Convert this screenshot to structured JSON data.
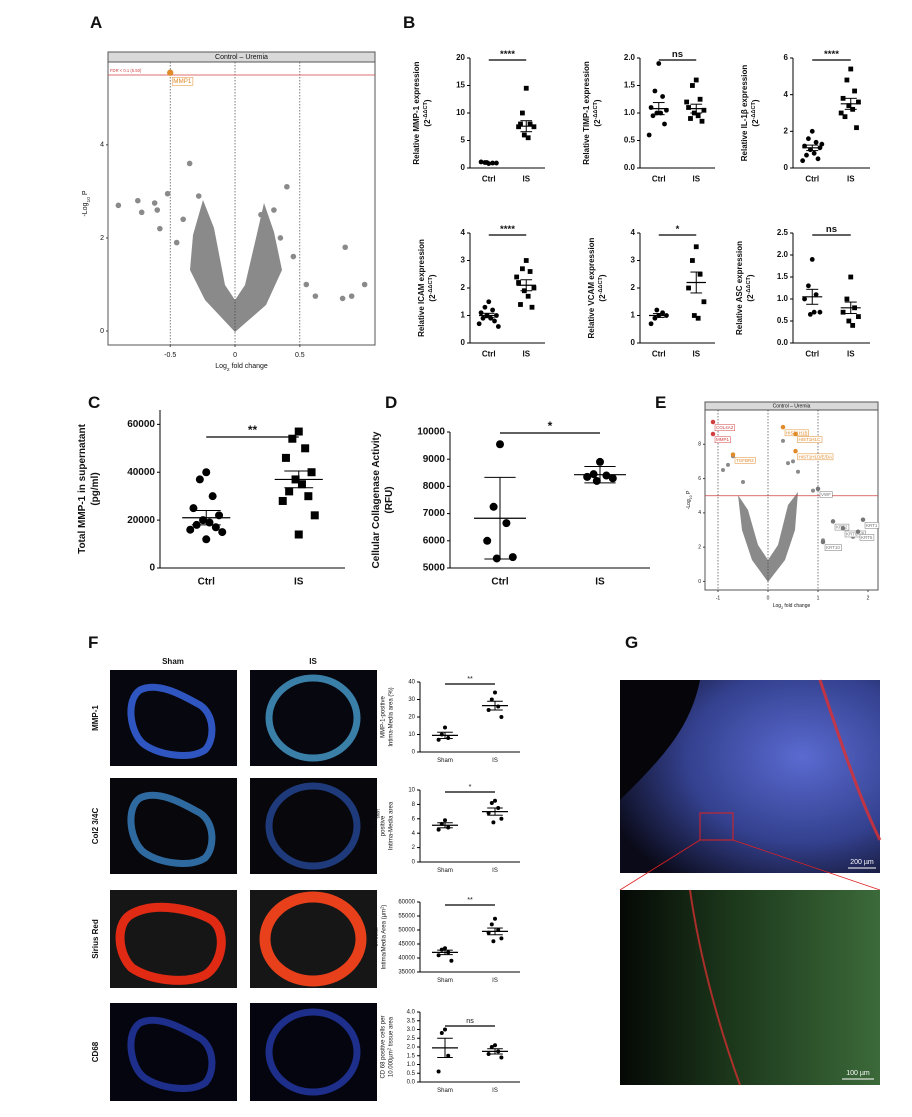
{
  "panel_labels": [
    "A",
    "B",
    "C",
    "D",
    "E",
    "F",
    "G"
  ],
  "figure_F": {
    "columns": [
      "Sham",
      "IS"
    ],
    "rows": [
      "MMP-1",
      "Col2 3/4C",
      "Sirius Red",
      "CD68"
    ]
  },
  "figure_G": {
    "scale_top": "200 µm",
    "scale_bottom": "100 µm"
  },
  "chart_data": [
    {
      "type": "volcano",
      "title": "Control – Uremia",
      "xlabel": [
        "Log",
        "2",
        " fold change"
      ],
      "ylabel": [
        "-Log",
        "10",
        " P"
      ],
      "xlim": [
        -0.98,
        1.08
      ],
      "ylim": [
        -0.3,
        5.78
      ],
      "xticks": [
        -0.5,
        0,
        0.5
      ],
      "yticks": [
        0,
        2,
        4
      ],
      "vlines": [
        -0.5,
        0,
        0.5
      ],
      "threshold": 5.5,
      "threshold_label": "FDR < 0.1 (5.50)",
      "point_color": "#8a8a8a",
      "threshold_color": "#d04040",
      "x": [
        -0.9,
        -0.75,
        -0.72,
        -0.6,
        -0.62,
        -0.52,
        -0.58,
        -0.35,
        -0.4,
        -0.45,
        0.85,
        0.9,
        1.0,
        0.83,
        0.62,
        0.55,
        0.4,
        0.3,
        0.45,
        -0.28,
        0.2,
        0.35
      ],
      "y": [
        2.7,
        2.8,
        2.55,
        2.6,
        2.75,
        2.95,
        2.2,
        3.6,
        2.4,
        1.9,
        1.8,
        0.75,
        1.0,
        0.7,
        0.75,
        1.0,
        3.1,
        2.6,
        1.6,
        2.9,
        2.5,
        2.0
      ],
      "labels": [
        {
          "text": "MMP1",
          "x": -0.5,
          "y": 5.55,
          "color": "#e08a2a"
        }
      ]
    },
    {
      "type": "dotplot",
      "ylabel": [
        [
          "Relative MMP-1 expression"
        ],
        [
          "(2",
          "-ΔΔCT",
          ")"
        ]
      ],
      "ylabel_shift": "super",
      "categories": [
        "Ctrl",
        "IS"
      ],
      "markers": [
        "circle",
        "square"
      ],
      "color": "#000000",
      "ylim": [
        0,
        20
      ],
      "yticks": [
        0,
        5,
        10,
        15,
        20
      ],
      "groups": [
        {
          "values": [
            0.8,
            1.0,
            0.9,
            1.1,
            0.9,
            1.0
          ],
          "mean": 0.95,
          "error": 0.05
        },
        {
          "values": [
            14.5,
            10,
            8,
            7.5,
            7.5,
            6,
            5.5,
            8
          ],
          "mean": 7.6,
          "error": 1.0
        }
      ],
      "significance": "****"
    },
    {
      "type": "dotplot",
      "ylabel": [
        [
          "Relative TIMP-1 expression"
        ],
        [
          "(2",
          "-ΔΔCT",
          ")"
        ]
      ],
      "ylabel_shift": "super",
      "categories": [
        "Ctrl",
        "IS"
      ],
      "markers": [
        "circle",
        "square"
      ],
      "color": "#000000",
      "ylim": [
        0,
        2
      ],
      "yticks": [
        {
          "value": 0,
          "label": "0.0"
        },
        0.5,
        {
          "value": 1,
          "label": "1.0"
        },
        1.5,
        {
          "value": 2,
          "label": "2.0"
        }
      ],
      "groups": [
        {
          "values": [
            1.9,
            1.4,
            1.3,
            1.1,
            1.05,
            1.0,
            1.0,
            0.95,
            0.8,
            0.6
          ],
          "mean": 1.08,
          "error": 0.11
        },
        {
          "values": [
            1.6,
            1.5,
            1.25,
            1.1,
            1.05,
            1.0,
            0.95,
            0.9,
            0.85,
            1.2
          ],
          "mean": 1.08,
          "error": 0.08
        }
      ],
      "significance": "ns"
    },
    {
      "type": "dotplot",
      "ylabel": [
        [
          "Relative IL-1β expression"
        ],
        [
          "(2",
          "-ΔΔCT",
          ")"
        ]
      ],
      "ylabel_shift": "super",
      "categories": [
        "Ctrl",
        "IS"
      ],
      "markers": [
        "circle",
        "square"
      ],
      "color": "#000000",
      "ylim": [
        0,
        6
      ],
      "yticks": [
        0,
        2,
        4,
        6
      ],
      "groups": [
        {
          "values": [
            2.0,
            1.6,
            1.4,
            1.2,
            1.1,
            1.0,
            0.8,
            0.7,
            0.5,
            0.4,
            1.3
          ],
          "mean": 1.1,
          "error": 0.15
        },
        {
          "values": [
            5.4,
            4.8,
            4.2,
            3.8,
            3.6,
            3.4,
            3.2,
            2.8,
            2.2,
            3.0
          ],
          "mean": 3.5,
          "error": 0.3
        }
      ],
      "significance": "****"
    },
    {
      "type": "dotplot",
      "ylabel": [
        [
          "Relative ICAM expression"
        ],
        [
          "(2",
          "-ΔΔCT",
          ")"
        ]
      ],
      "ylabel_shift": "super",
      "categories": [
        "Ctrl",
        "IS"
      ],
      "markers": [
        "circle",
        "square"
      ],
      "color": "#000000",
      "ylim": [
        0,
        4
      ],
      "yticks": [
        0,
        1,
        2,
        3,
        4
      ],
      "groups": [
        {
          "values": [
            1.5,
            1.3,
            1.2,
            1.1,
            1.0,
            1.0,
            0.9,
            0.9,
            0.8,
            0.7,
            0.6
          ],
          "mean": 1.0,
          "error": 0.08
        },
        {
          "values": [
            3.0,
            2.7,
            2.6,
            2.2,
            2.0,
            1.9,
            1.7,
            1.4,
            1.3,
            2.4
          ],
          "mean": 2.1,
          "error": 0.2
        }
      ],
      "significance": "****"
    },
    {
      "type": "dotplot",
      "ylabel": [
        [
          "Relative VCAM expression"
        ],
        [
          "(2",
          "-ΔΔCT",
          ")"
        ]
      ],
      "ylabel_shift": "super",
      "categories": [
        "Ctrl",
        "IS"
      ],
      "markers": [
        "circle",
        "square"
      ],
      "color": "#000000",
      "ylim": [
        0,
        4
      ],
      "yticks": [
        0,
        1,
        2,
        3,
        4
      ],
      "groups": [
        {
          "values": [
            1.0,
            0.9,
            1.1,
            0.7,
            1.0,
            1.2
          ],
          "mean": 1.0,
          "error": 0.07
        },
        {
          "values": [
            3.5,
            3.0,
            2.5,
            2.0,
            1.5,
            1.0,
            0.9
          ],
          "mean": 2.2,
          "error": 0.38
        }
      ],
      "significance": "*"
    },
    {
      "type": "dotplot",
      "ylabel": [
        [
          "Relative ASC expression"
        ],
        [
          "(2",
          "-ΔΔCT",
          ")"
        ]
      ],
      "ylabel_shift": "super",
      "categories": [
        "Ctrl",
        "IS"
      ],
      "markers": [
        "circle",
        "square"
      ],
      "color": "#000000",
      "ylim": [
        0,
        2.5
      ],
      "yticks": [
        {
          "value": 0,
          "label": "0.0"
        },
        0.5,
        {
          "value": 1,
          "label": "1.0"
        },
        1.5,
        {
          "value": 2,
          "label": "2.0"
        },
        2.5
      ],
      "groups": [
        {
          "values": [
            1.9,
            1.3,
            1.1,
            1.0,
            0.7,
            0.65,
            0.7
          ],
          "mean": 1.05,
          "error": 0.17
        },
        {
          "values": [
            1.5,
            1.0,
            0.8,
            0.7,
            0.6,
            0.5,
            0.4
          ],
          "mean": 0.8,
          "error": 0.13
        }
      ],
      "significance": "ns"
    },
    {
      "type": "dotplot",
      "ylabel": [
        [
          "Total MMP-1 in supernatant"
        ],
        [
          "(pg/ml)"
        ]
      ],
      "categories": [
        "Ctrl",
        "IS"
      ],
      "markers": [
        "circle",
        "square"
      ],
      "color": "#000000",
      "ylim": [
        0,
        66000
      ],
      "yticks": [
        0,
        20000,
        40000,
        60000
      ],
      "groups": [
        {
          "values": [
            40000,
            37000,
            30000,
            25000,
            22000,
            20000,
            19000,
            18000,
            17000,
            16000,
            15000,
            12000
          ],
          "mean": 21000,
          "error": 3000
        },
        {
          "values": [
            57000,
            54000,
            50000,
            46000,
            40000,
            37000,
            35000,
            32000,
            30000,
            28000,
            22000,
            14000
          ],
          "mean": 37000,
          "error": 3500
        }
      ],
      "significance": "**"
    },
    {
      "type": "dotplot",
      "ylabel": [
        [
          "Cellular Collagenase Activity"
        ],
        [
          "(RFU)"
        ]
      ],
      "categories": [
        "Ctrl",
        "IS"
      ],
      "markers": [
        "circle",
        "circle"
      ],
      "color": "#000000",
      "ylim": [
        5000,
        10000
      ],
      "yticks": [
        5000,
        6000,
        7000,
        8000,
        9000,
        10000
      ],
      "groups": [
        {
          "values": [
            9550,
            7250,
            6650,
            6000,
            5400,
            5350
          ],
          "mean": 6830,
          "error": 1500
        },
        {
          "values": [
            8900,
            8450,
            8400,
            8350,
            8300,
            8200
          ],
          "mean": 8430,
          "error": 300
        }
      ],
      "significance": "*"
    },
    {
      "type": "volcano",
      "title": "Control – Uremia",
      "xlabel": [
        "Log",
        "2",
        " fold change"
      ],
      "ylabel": [
        "-Log",
        "10",
        " P"
      ],
      "xlim": [
        -1.26,
        2.2
      ],
      "ylim": [
        -0.5,
        10
      ],
      "xticks": [
        -1,
        0,
        1,
        2
      ],
      "yticks": [
        0,
        2,
        4,
        6,
        8
      ],
      "vlines": [
        -1,
        0,
        1
      ],
      "threshold": 5,
      "point_color": "#8a8a8a",
      "threshold_color": "#d04040",
      "x": [
        -0.8,
        -0.7,
        -0.9,
        0.3,
        0.5,
        0.6,
        1.3,
        1.5,
        1.9,
        1.7,
        1.1,
        0.9,
        -0.5,
        0.4
      ],
      "y": [
        6.8,
        7.3,
        6.5,
        8.2,
        7.0,
        6.4,
        3.5,
        3.1,
        3.6,
        2.6,
        2.4,
        5.3,
        5.8,
        6.9
      ],
      "labels": [
        {
          "text": "COL4A2",
          "x": -1.1,
          "y": 9.3,
          "color": "#d04040"
        },
        {
          "text": "MMP1",
          "x": -1.1,
          "y": 8.6,
          "color": "#d04040"
        },
        {
          "text": "TGFBR2",
          "x": -0.7,
          "y": 7.4,
          "color": "#e08a2a"
        },
        {
          "text": "HIST1H1B",
          "x": 0.3,
          "y": 9.0,
          "color": "#e08a2a"
        },
        {
          "text": "HIST1H1C",
          "x": 0.55,
          "y": 8.6,
          "color": "#e08a2a"
        },
        {
          "text": "HIST1H1D/E/DA",
          "x": 0.55,
          "y": 7.6,
          "color": "#e08a2a"
        },
        {
          "text": "VWF",
          "x": 1.0,
          "y": 5.4,
          "color": "#777777"
        },
        {
          "text": "KRT2",
          "x": 1.3,
          "y": 3.5,
          "color": "#777777"
        },
        {
          "text": "KRT1",
          "x": 1.9,
          "y": 3.6,
          "color": "#777777"
        },
        {
          "text": "KRT6A/B",
          "x": 1.5,
          "y": 3.1,
          "color": "#777777"
        },
        {
          "text": "KRT5",
          "x": 1.8,
          "y": 2.9,
          "color": "#777777"
        },
        {
          "text": "KRT10",
          "x": 1.1,
          "y": 2.3,
          "color": "#777777"
        }
      ]
    },
    {
      "type": "dotplot",
      "ylabel": [
        [
          "MMP-1-positive"
        ],
        [
          "Intima-Media area (%)"
        ]
      ],
      "categories": [
        "Sham",
        "IS"
      ],
      "markers": [
        "circle",
        "circle"
      ],
      "color": "#000000",
      "ylim": [
        0,
        40
      ],
      "yticks": [
        0,
        10,
        20,
        30,
        40
      ],
      "groups": [
        {
          "values": [
            14,
            10,
            8,
            7
          ],
          "mean": 9.5,
          "error": 1.8
        },
        {
          "values": [
            34,
            30,
            26,
            24,
            20
          ],
          "mean": 26.5,
          "error": 2.5
        }
      ],
      "significance": "**"
    },
    {
      "type": "dotplot",
      "ylabel": [
        [
          "Col2 3/4C",
          "short",
          "-"
        ],
        [
          "positive"
        ],
        [
          "Intima-Media area"
        ]
      ],
      "ylabel_shift": "sub",
      "categories": [
        "Sham",
        "IS"
      ],
      "markers": [
        "circle",
        "circle"
      ],
      "color": "#000000",
      "ylim": [
        0,
        10
      ],
      "yticks": [
        0,
        2,
        4,
        6,
        8,
        10
      ],
      "groups": [
        {
          "values": [
            5.8,
            5.3,
            4.8,
            4.5
          ],
          "mean": 5.1,
          "error": 0.35
        },
        {
          "values": [
            8.5,
            8.2,
            7.5,
            6.8,
            6.0,
            5.5
          ],
          "mean": 7.0,
          "error": 0.5
        }
      ],
      "significance": "*"
    },
    {
      "type": "dotplot",
      "ylabel": [
        [
          "Circular"
        ],
        [
          "Intima/Media Area (µm",
          "2",
          ")"
        ]
      ],
      "ylabel_shift": "super",
      "categories": [
        "Sham",
        "IS"
      ],
      "markers": [
        "circle",
        "circle"
      ],
      "color": "#000000",
      "ylim": [
        35000,
        60000
      ],
      "yticks": [
        35000,
        40000,
        45000,
        50000,
        55000,
        60000
      ],
      "groups": [
        {
          "values": [
            43500,
            43000,
            42000,
            41000,
            39000
          ],
          "mean": 42000,
          "error": 800
        },
        {
          "values": [
            54000,
            52000,
            50000,
            49000,
            47000,
            46000
          ],
          "mean": 49500,
          "error": 1200
        }
      ],
      "significance": "**"
    },
    {
      "type": "dotplot",
      "ylabel": [
        [
          "CD 68 positive cells per"
        ],
        [
          "10.000µm",
          "2",
          " tissue area"
        ]
      ],
      "ylabel_shift": "super",
      "categories": [
        "Sham",
        "IS"
      ],
      "markers": [
        "circle",
        "circle"
      ],
      "color": "#000000",
      "ylim": [
        0,
        4
      ],
      "yticks": [
        {
          "value": 0,
          "label": "0.0"
        },
        0.5,
        {
          "value": 1,
          "label": "1.0"
        },
        1.5,
        {
          "value": 2,
          "label": "2.0"
        },
        2.5,
        {
          "value": 3,
          "label": "3.0"
        },
        3.5,
        {
          "value": 4,
          "label": "4.0"
        }
      ],
      "groups": [
        {
          "values": [
            3.0,
            2.8,
            1.5,
            0.6
          ],
          "mean": 1.95,
          "error": 0.55
        },
        {
          "values": [
            2.1,
            2.0,
            1.75,
            1.6,
            1.4
          ],
          "mean": 1.75,
          "error": 0.15
        }
      ],
      "significance": "ns"
    }
  ]
}
